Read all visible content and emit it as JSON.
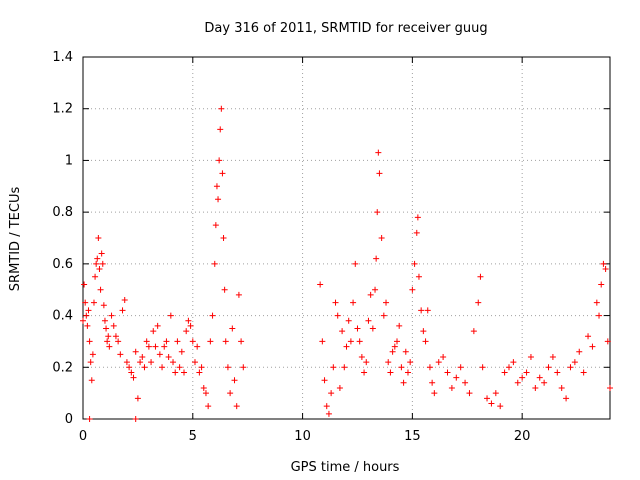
{
  "chart_data": {
    "type": "scatter",
    "title": "Day 316 of 2011, SRMTID for receiver guug",
    "xlabel": "GPS time / hours",
    "ylabel": "SRMTID / TECUs",
    "xlim": [
      0,
      24
    ],
    "ylim": [
      0,
      1.4
    ],
    "xticks": [
      0,
      5,
      10,
      15,
      20
    ],
    "xtick_labels": [
      "0",
      "5",
      "10",
      "15",
      "20"
    ],
    "yticks": [
      0,
      0.2,
      0.4,
      0.6,
      0.8,
      1,
      1.2,
      1.4
    ],
    "ytick_labels": [
      "0",
      "0.2",
      "0.4",
      "0.6",
      "0.8",
      "1",
      "1.2",
      "1.4"
    ],
    "grid": true,
    "marker": "plus",
    "series": [
      {
        "name": "SRMTID",
        "color": "#ff0000",
        "x": [
          0.0,
          0.05,
          0.1,
          0.15,
          0.2,
          0.25,
          0.3,
          0.35,
          0.4,
          0.45,
          0.5,
          0.55,
          0.6,
          0.65,
          0.7,
          0.75,
          0.8,
          0.85,
          0.9,
          0.95,
          1.0,
          1.05,
          1.1,
          1.15,
          1.2,
          1.3,
          1.4,
          1.5,
          1.6,
          1.7,
          1.8,
          1.9,
          2.0,
          2.1,
          2.2,
          2.3,
          2.4,
          2.5,
          2.6,
          2.7,
          2.8,
          2.9,
          3.0,
          3.1,
          3.2,
          3.3,
          3.4,
          3.5,
          3.6,
          3.7,
          3.8,
          3.9,
          4.0,
          4.1,
          4.2,
          4.3,
          4.4,
          4.5,
          4.6,
          4.7,
          4.8,
          4.9,
          5.0,
          5.1,
          5.2,
          5.3,
          5.4,
          5.5,
          5.6,
          5.7,
          5.8,
          5.9,
          6.0,
          6.05,
          6.1,
          6.15,
          6.2,
          6.25,
          6.3,
          6.35,
          6.4,
          6.45,
          6.5,
          6.6,
          6.7,
          6.8,
          6.9,
          7.0,
          7.1,
          7.2,
          7.3,
          10.8,
          10.9,
          11.0,
          11.1,
          11.2,
          11.3,
          11.4,
          11.5,
          11.6,
          11.7,
          11.8,
          11.9,
          12.0,
          12.1,
          12.2,
          12.3,
          12.4,
          12.5,
          12.6,
          12.7,
          12.8,
          12.9,
          13.0,
          13.1,
          13.2,
          13.3,
          13.35,
          13.4,
          13.45,
          13.5,
          13.6,
          13.7,
          13.8,
          13.9,
          14.0,
          14.1,
          14.2,
          14.3,
          14.4,
          14.5,
          14.6,
          14.7,
          14.8,
          14.9,
          15.0,
          15.1,
          15.2,
          15.25,
          15.3,
          15.4,
          15.5,
          15.6,
          15.7,
          15.8,
          15.9,
          16.0,
          16.2,
          16.4,
          16.6,
          16.8,
          17.0,
          17.2,
          17.4,
          17.6,
          17.8,
          18.0,
          18.1,
          18.2,
          18.4,
          18.6,
          18.8,
          19.0,
          19.2,
          19.4,
          19.6,
          19.8,
          20.0,
          20.2,
          20.4,
          20.6,
          20.8,
          21.0,
          21.2,
          21.4,
          21.6,
          21.8,
          22.0,
          22.2,
          22.4,
          22.6,
          22.8,
          23.0,
          23.2,
          23.4,
          23.5,
          23.6,
          23.7,
          23.8,
          23.9,
          24.0,
          0.3,
          2.4
        ],
        "y": [
          0.38,
          0.52,
          0.45,
          0.4,
          0.36,
          0.42,
          0.3,
          0.22,
          0.15,
          0.25,
          0.45,
          0.55,
          0.6,
          0.62,
          0.7,
          0.58,
          0.5,
          0.64,
          0.6,
          0.44,
          0.38,
          0.35,
          0.3,
          0.32,
          0.28,
          0.4,
          0.36,
          0.32,
          0.3,
          0.25,
          0.42,
          0.46,
          0.22,
          0.2,
          0.18,
          0.16,
          0.26,
          0.08,
          0.22,
          0.24,
          0.2,
          0.3,
          0.28,
          0.22,
          0.34,
          0.28,
          0.36,
          0.25,
          0.2,
          0.28,
          0.3,
          0.24,
          0.4,
          0.22,
          0.18,
          0.3,
          0.2,
          0.26,
          0.18,
          0.34,
          0.38,
          0.36,
          0.3,
          0.22,
          0.28,
          0.18,
          0.2,
          0.12,
          0.1,
          0.05,
          0.3,
          0.4,
          0.6,
          0.75,
          0.9,
          0.85,
          1.0,
          1.12,
          1.2,
          0.95,
          0.7,
          0.5,
          0.3,
          0.2,
          0.1,
          0.35,
          0.15,
          0.05,
          0.48,
          0.3,
          0.2,
          0.52,
          0.3,
          0.15,
          0.05,
          0.02,
          0.1,
          0.2,
          0.45,
          0.4,
          0.12,
          0.34,
          0.2,
          0.28,
          0.38,
          0.3,
          0.45,
          0.6,
          0.35,
          0.3,
          0.24,
          0.18,
          0.22,
          0.38,
          0.48,
          0.35,
          0.5,
          0.62,
          0.8,
          1.03,
          0.95,
          0.7,
          0.4,
          0.45,
          0.22,
          0.18,
          0.26,
          0.28,
          0.3,
          0.36,
          0.2,
          0.14,
          0.26,
          0.18,
          0.22,
          0.5,
          0.6,
          0.72,
          0.78,
          0.55,
          0.42,
          0.34,
          0.3,
          0.42,
          0.2,
          0.14,
          0.1,
          0.22,
          0.24,
          0.18,
          0.12,
          0.16,
          0.2,
          0.14,
          0.1,
          0.34,
          0.45,
          0.55,
          0.2,
          0.08,
          0.06,
          0.1,
          0.05,
          0.18,
          0.2,
          0.22,
          0.14,
          0.16,
          0.18,
          0.24,
          0.12,
          0.16,
          0.14,
          0.2,
          0.24,
          0.18,
          0.12,
          0.08,
          0.2,
          0.22,
          0.26,
          0.18,
          0.32,
          0.28,
          0.45,
          0.4,
          0.52,
          0.6,
          0.58,
          0.3,
          0.12,
          0.0,
          0.0
        ]
      }
    ]
  }
}
